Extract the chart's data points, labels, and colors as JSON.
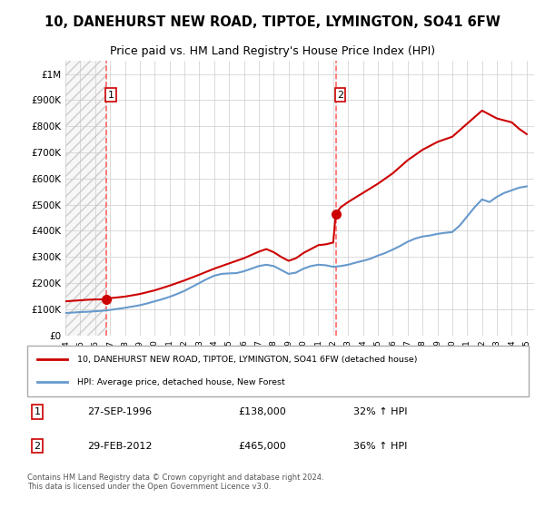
{
  "title": "10, DANEHURST NEW ROAD, TIPTOE, LYMINGTON, SO41 6FW",
  "subtitle": "Price paid vs. HM Land Registry's House Price Index (HPI)",
  "legend_line1": "10, DANEHURST NEW ROAD, TIPTOE, LYMINGTON, SO41 6FW (detached house)",
  "legend_line2": "HPI: Average price, detached house, New Forest",
  "point1_label": "1",
  "point1_date": "27-SEP-1996",
  "point1_price": "£138,000",
  "point1_hpi": "32% ↑ HPI",
  "point2_label": "2",
  "point2_date": "29-FEB-2012",
  "point2_price": "£465,000",
  "point2_hpi": "36% ↑ HPI",
  "footer": "Contains HM Land Registry data © Crown copyright and database right 2024.\nThis data is licensed under the Open Government Licence v3.0.",
  "sale_color": "#cc0000",
  "hpi_color": "#6699cc",
  "dashed_line_color": "#ff6666",
  "background_hatch_color": "#e8e8e8",
  "ylim": [
    0,
    1050000
  ],
  "yticks": [
    0,
    100000,
    200000,
    300000,
    400000,
    500000,
    600000,
    700000,
    800000,
    900000,
    1000000
  ],
  "ytick_labels": [
    "£0",
    "£100K",
    "£200K",
    "£300K",
    "£400K",
    "£500K",
    "£600K",
    "£700K",
    "£800K",
    "£900K",
    "£1M"
  ],
  "xlim_start": 1994.0,
  "xlim_end": 2025.5,
  "sale1_x": 1996.75,
  "sale1_y": 138000,
  "sale2_x": 2012.17,
  "sale2_y": 465000,
  "hpi_years": [
    1994,
    1994.5,
    1995,
    1995.5,
    1996,
    1996.5,
    1997,
    1997.5,
    1998,
    1998.5,
    1999,
    1999.5,
    2000,
    2000.5,
    2001,
    2001.5,
    2002,
    2002.5,
    2003,
    2003.5,
    2004,
    2004.5,
    2005,
    2005.5,
    2006,
    2006.5,
    2007,
    2007.5,
    2008,
    2008.5,
    2009,
    2009.5,
    2010,
    2010.5,
    2011,
    2011.5,
    2012,
    2012.5,
    2013,
    2013.5,
    2014,
    2014.5,
    2015,
    2015.5,
    2016,
    2016.5,
    2017,
    2017.5,
    2018,
    2018.5,
    2019,
    2019.5,
    2020,
    2020.5,
    2021,
    2021.5,
    2022,
    2022.5,
    2023,
    2023.5,
    2024,
    2024.5,
    2025
  ],
  "hpi_values": [
    85000,
    87000,
    89000,
    90000,
    92000,
    94000,
    97000,
    101000,
    105000,
    110000,
    115000,
    122000,
    130000,
    138000,
    147000,
    158000,
    170000,
    185000,
    200000,
    215000,
    228000,
    235000,
    237000,
    238000,
    245000,
    255000,
    265000,
    270000,
    265000,
    250000,
    235000,
    240000,
    255000,
    265000,
    270000,
    268000,
    262000,
    265000,
    270000,
    278000,
    285000,
    293000,
    305000,
    315000,
    328000,
    342000,
    358000,
    370000,
    378000,
    382000,
    388000,
    392000,
    395000,
    420000,
    455000,
    490000,
    520000,
    510000,
    530000,
    545000,
    555000,
    565000,
    570000
  ],
  "sale_line_years": [
    1994,
    1994.5,
    1995,
    1995.5,
    1996,
    1996.5,
    1996.75,
    1997,
    1998,
    1999,
    2000,
    2001,
    2002,
    2003,
    2004,
    2005,
    2006,
    2007,
    2007.5,
    2008,
    2008.5,
    2009,
    2009.5,
    2010,
    2010.5,
    2011,
    2011.5,
    2012,
    2012.17,
    2012.5,
    2013,
    2014,
    2015,
    2016,
    2017,
    2018,
    2019,
    2020,
    2021,
    2022,
    2023,
    2024,
    2024.5,
    2025
  ],
  "sale_line_values": [
    130000,
    132000,
    134000,
    136000,
    137000,
    137500,
    138000,
    142000,
    148000,
    158000,
    172000,
    190000,
    210000,
    232000,
    255000,
    275000,
    295000,
    320000,
    330000,
    318000,
    300000,
    285000,
    295000,
    315000,
    330000,
    345000,
    348000,
    355000,
    465000,
    490000,
    510000,
    545000,
    580000,
    620000,
    670000,
    710000,
    740000,
    760000,
    810000,
    860000,
    830000,
    815000,
    790000,
    770000
  ]
}
